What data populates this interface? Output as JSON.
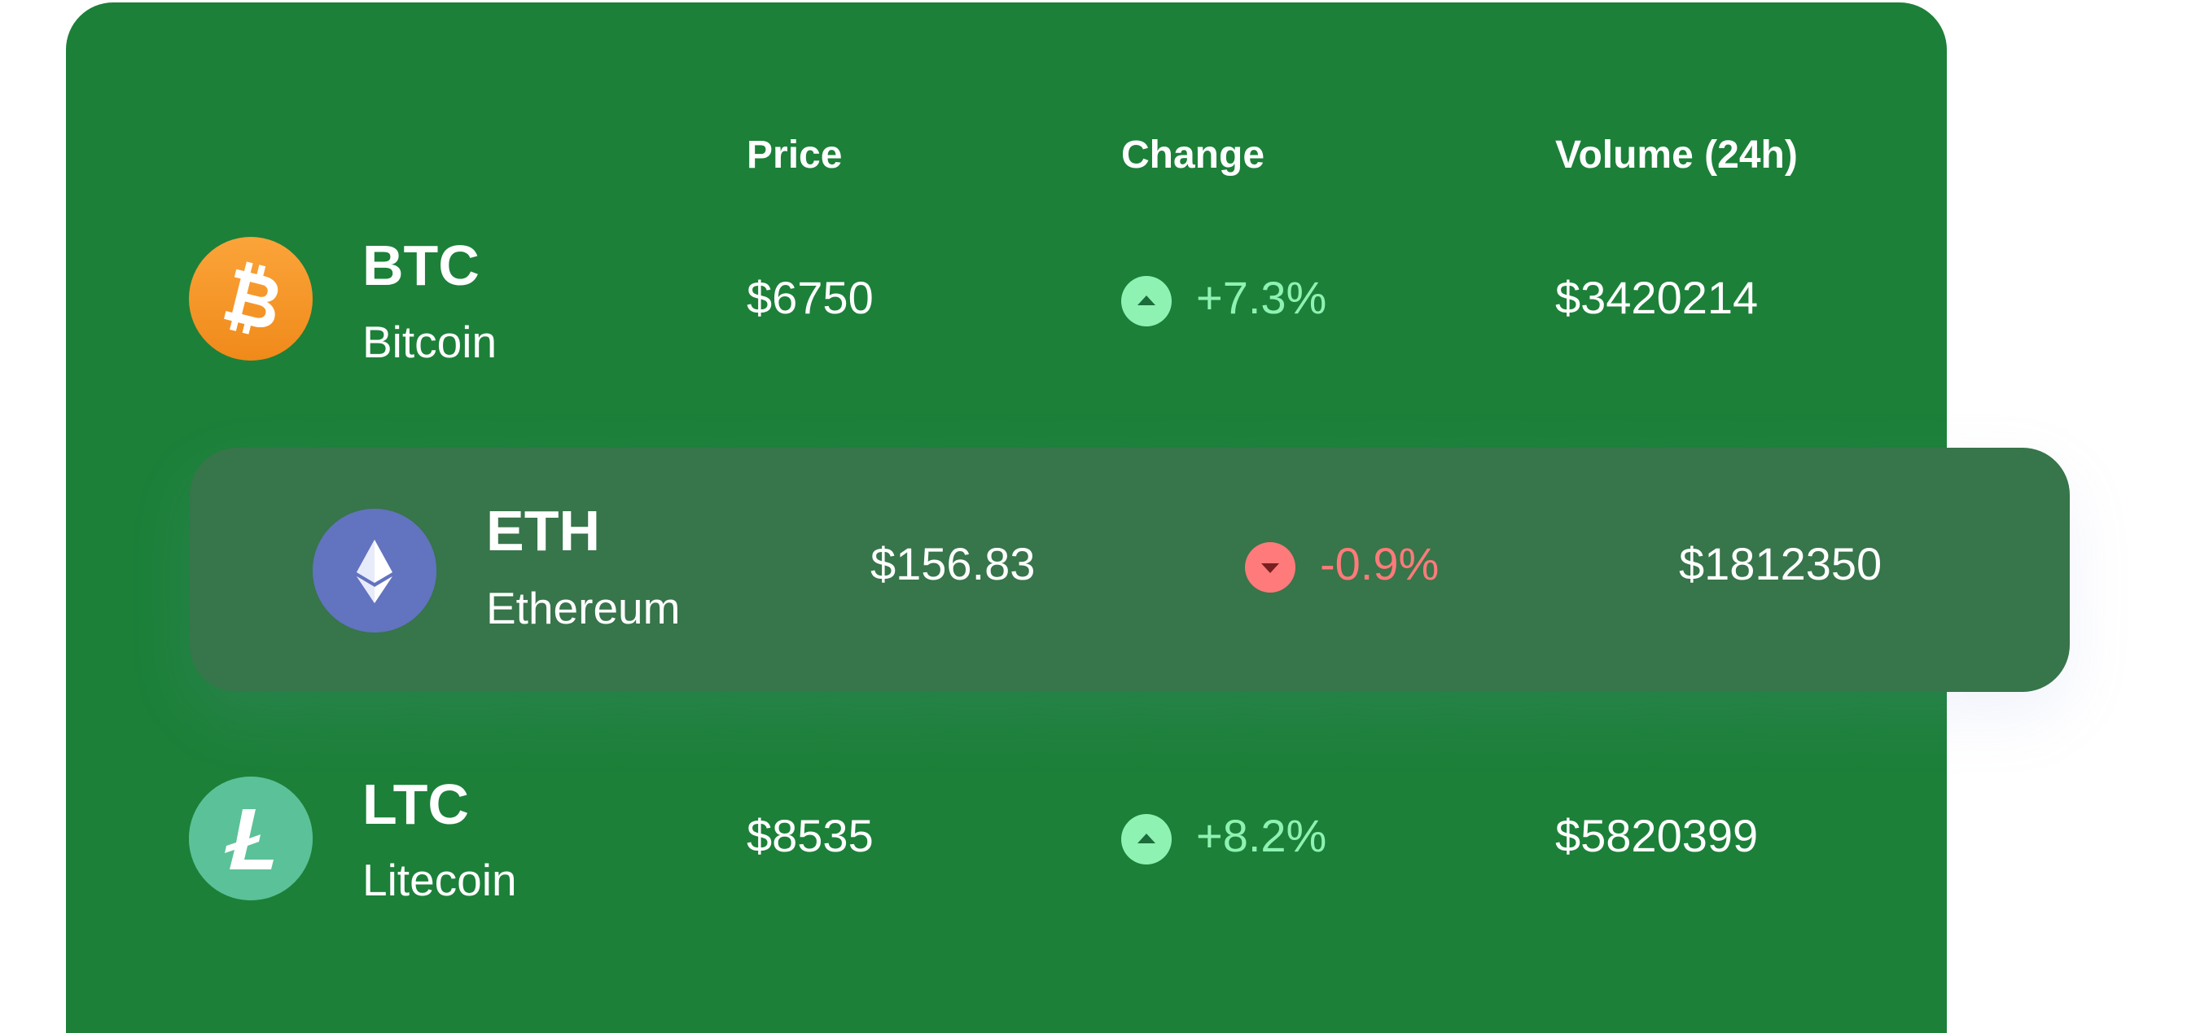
{
  "headers": {
    "price": "Price",
    "change": "Change",
    "volume": "Volume (24h)"
  },
  "colors": {
    "card_bg": "#1c8039",
    "highlight_bg": "#37754a",
    "up": "#8ef2b2",
    "down": "#ff7a7a",
    "btc": "#f7931a",
    "eth": "#6273c0",
    "ltc": "#5bc198"
  },
  "coins": [
    {
      "ticker": "BTC",
      "name": "Bitcoin",
      "icon": "bitcoin-icon",
      "price": "$6750",
      "change": "+7.3%",
      "direction": "up",
      "volume": "$3420214"
    },
    {
      "ticker": "ETH",
      "name": "Ethereum",
      "icon": "ethereum-icon",
      "price": "$156.83",
      "change": "-0.9%",
      "direction": "down",
      "volume": "$1812350"
    },
    {
      "ticker": "LTC",
      "name": "Litecoin",
      "icon": "litecoin-icon",
      "price": "$8535",
      "change": "+8.2%",
      "direction": "up",
      "volume": "$5820399"
    }
  ]
}
